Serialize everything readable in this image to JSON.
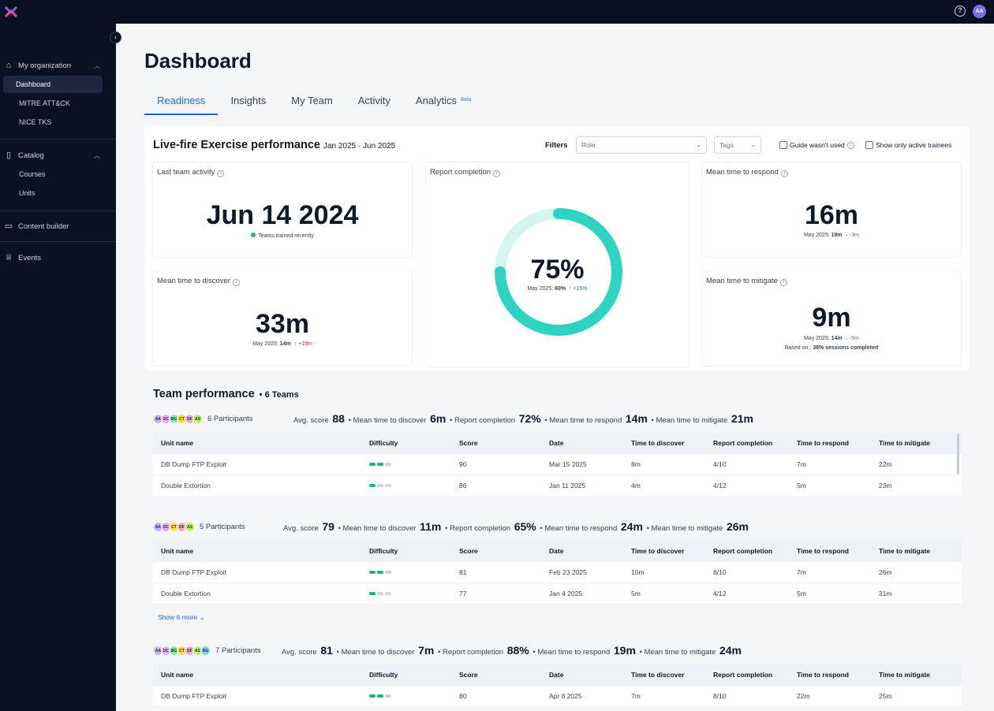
{
  "topbar": {
    "help_icon": "help-icon",
    "user_initials": "AA",
    "logo": "x-logo"
  },
  "sidebar": {
    "collapse_icon": "‹",
    "groups": [
      {
        "label": "My organization",
        "icon": "building-icon",
        "items": [
          "Dashboard",
          "MITRE ATT&CK",
          "NICE TKS"
        ]
      },
      {
        "label": "Catalog",
        "icon": "book-icon",
        "items": [
          "Courses",
          "Units"
        ]
      },
      {
        "label": "Content builder",
        "icon": "builder-icon",
        "items": []
      },
      {
        "label": "Events",
        "icon": "trophy-icon",
        "items": []
      }
    ],
    "active": "Dashboard"
  },
  "page": {
    "title": "Dashboard",
    "tabs": [
      "Readiness",
      "Insights",
      "My Team",
      "Activity",
      "Analytics"
    ],
    "active_tab": "Readiness",
    "beta_label": "Beta"
  },
  "livefire": {
    "title": "Live-fire Exercise performance",
    "range": "Jan 2025 - Jun 2025",
    "filters_label": "Filters",
    "role_placeholder": "Role",
    "tags_placeholder": "Tags",
    "guide_label": "Guide wasn't used",
    "active_label": "Show only active trainees",
    "last_activity": {
      "label": "Last team activity",
      "value": "Jun 14 2024",
      "sub": "Teams trained recently"
    },
    "report_completion": {
      "label": "Report completion",
      "value": "75%",
      "prev_label": "May 2025:",
      "prev_value": "60%",
      "delta": "↑ +15%",
      "fraction": 0.75
    },
    "mttr": {
      "label": "Mean time to respond",
      "value": "16m",
      "prev_label": "May 2025:",
      "prev_value": "19m",
      "delta": "↓ -3m"
    },
    "mttd": {
      "label": "Mean time to discover",
      "value": "33m",
      "prev_label": "May 2025:",
      "prev_value": "14m",
      "delta": "↑ +19m"
    },
    "mttm": {
      "label": "Mean time to mitigate",
      "value": "9m",
      "prev_label": "May 2025:",
      "prev_value": "14m",
      "delta": "↓ -5m",
      "based_label": "Based on :",
      "based_value": "38% sessions completed"
    }
  },
  "team_performance": {
    "title": "Team performance",
    "count": "6 Teams",
    "columns": [
      "Unit name",
      "Difficulty",
      "Score",
      "Date",
      "Time to discover",
      "Report completion",
      "Time to respond",
      "Time to mitigate"
    ],
    "show_more": "Show 6 more",
    "teams": [
      {
        "avatars": [
          "AA",
          "DC",
          "BG",
          "CT",
          "DF",
          "AS"
        ],
        "participants": "6 Participants",
        "avg_label": "Avg. score",
        "avg": "88",
        "mttd_label": "• Mean time to discover",
        "mttd": "6m",
        "rc_label": "• Report completion",
        "rc": "72%",
        "mttr_label": "• Mean time to respond",
        "mttr": "14m",
        "mttm_label": "• Mean time to mitigate",
        "mttm": "21m",
        "rows": [
          [
            "DB Dump FTP Exploit",
            "",
            "90",
            "Mar 15 2025",
            "8m",
            "4/10",
            "7m",
            "22m"
          ],
          [
            "Double Extortion",
            "",
            "86",
            "Jan 11 2025",
            "4m",
            "4/12",
            "5m",
            "23m"
          ]
        ]
      },
      {
        "avatars": [
          "AA",
          "DC",
          "CT",
          "DF",
          "AS"
        ],
        "participants": "5 Participants",
        "avg_label": "Avg. score",
        "avg": "79",
        "mttd_label": "• Mean time to discover",
        "mttd": "11m",
        "rc_label": "• Report completion",
        "rc": "65%",
        "mttr_label": "• Mean time to respond",
        "mttr": "24m",
        "mttm_label": "• Mean time to mitigate",
        "mttm": "26m",
        "rows": [
          [
            "DB Dump FTP Exploit",
            "",
            "81",
            "Feb 23 2025",
            "10m",
            "8/10",
            "7m",
            "26m"
          ],
          [
            "Double Extortion",
            "",
            "77",
            "Jan 4 2025",
            "5m",
            "4/12",
            "5m",
            "31m"
          ]
        ]
      },
      {
        "avatars": [
          "AA",
          "DC",
          "BG",
          "CT",
          "DF",
          "AS",
          "RG"
        ],
        "participants": "7 Participants",
        "avg_label": "Avg. score",
        "avg": "81",
        "mttd_label": "• Mean time to discover",
        "mttd": "7m",
        "rc_label": "• Report completion",
        "rc": "88%",
        "mttr_label": "• Mean time to respond",
        "mttr": "19m",
        "mttm_label": "• Mean time to mitigate",
        "mttm": "24m",
        "rows": [
          [
            "DB Dump FTP Exploit",
            "",
            "80",
            "Apr 8 2025",
            "7m",
            "8/10",
            "22m",
            "25m"
          ]
        ]
      }
    ]
  },
  "colors": {
    "accent": "#2563eb",
    "ring": "#2dd4bf",
    "ring_bg": "#d5f5ef",
    "sidebar_bg": "#0b1023"
  }
}
